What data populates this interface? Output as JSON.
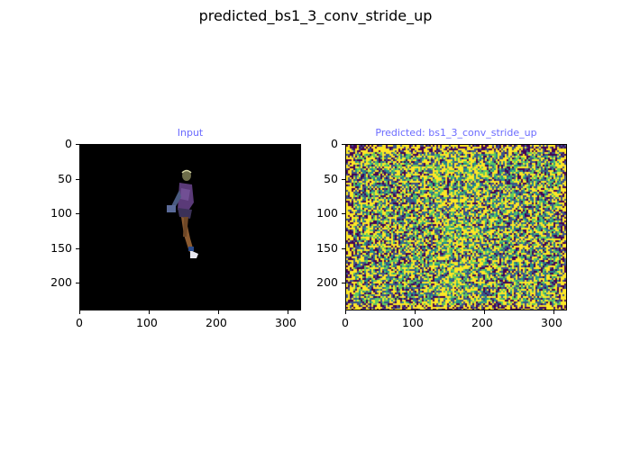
{
  "figure": {
    "suptitle": "predicted_bs1_3_conv_stride_up"
  },
  "panels": [
    {
      "id": "input",
      "title": "Input",
      "title_color": "#6b6bff",
      "background": "#000000",
      "content": "person-figure-image",
      "xticks": [
        "0",
        "100",
        "200",
        "300"
      ],
      "yticks": [
        "0",
        "50",
        "100",
        "150",
        "200"
      ],
      "x_range": [
        0,
        320
      ],
      "y_range": [
        0,
        240
      ]
    },
    {
      "id": "predicted",
      "title": "Predicted: bs1_3_conv_stride_up",
      "title_color": "#6b6bff",
      "content": "noisy-prediction-heatmap",
      "colormap": [
        "#440154",
        "#3b528b",
        "#21918c",
        "#5ec962",
        "#fde725"
      ],
      "xticks": [
        "0",
        "100",
        "200",
        "300"
      ],
      "yticks": [
        "0",
        "50",
        "100",
        "150",
        "200"
      ],
      "x_range": [
        0,
        320
      ],
      "y_range": [
        0,
        240
      ]
    }
  ]
}
